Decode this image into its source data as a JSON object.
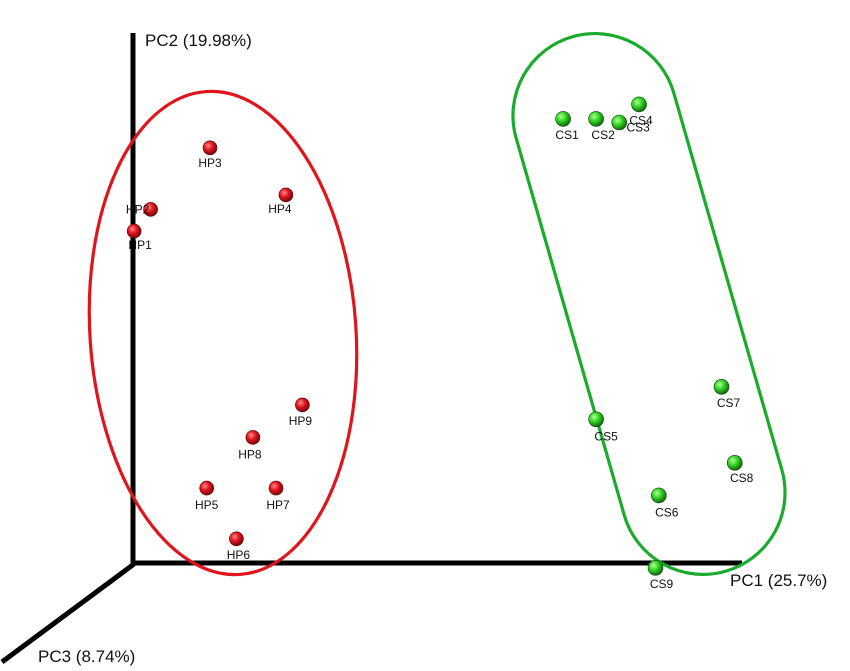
{
  "chart_data": {
    "type": "scatter",
    "title": "",
    "axes": {
      "pc1": {
        "label": "PC1 (25.7%)"
      },
      "pc2": {
        "label": "PC2 (19.98%)"
      },
      "pc3": {
        "label": "PC3 (8.74%)"
      }
    },
    "colors": {
      "HP": "#e0141c",
      "CS": "#1aaa2e",
      "axis": "#000000"
    },
    "grid": false,
    "legend": "none",
    "groups": [
      {
        "id": "HP",
        "color": "#e0141c"
      },
      {
        "id": "CS",
        "color": "#1aaa2e"
      }
    ],
    "points": [
      {
        "label": "HP1",
        "group": "HP",
        "pc1": -0.93,
        "pc2": 0.65
      },
      {
        "label": "HP2",
        "group": "HP",
        "pc1": -0.88,
        "pc2": 0.71
      },
      {
        "label": "HP3",
        "group": "HP",
        "pc1": -0.7,
        "pc2": 0.88
      },
      {
        "label": "HP4",
        "group": "HP",
        "pc1": -0.47,
        "pc2": 0.75
      },
      {
        "label": "HP5",
        "group": "HP",
        "pc1": -0.71,
        "pc2": -0.06
      },
      {
        "label": "HP6",
        "group": "HP",
        "pc1": -0.62,
        "pc2": -0.2
      },
      {
        "label": "HP7",
        "group": "HP",
        "pc1": -0.5,
        "pc2": -0.06
      },
      {
        "label": "HP8",
        "group": "HP",
        "pc1": -0.57,
        "pc2": 0.08
      },
      {
        "label": "HP9",
        "group": "HP",
        "pc1": -0.42,
        "pc2": 0.17
      },
      {
        "label": "CS1",
        "group": "CS",
        "pc1": 0.37,
        "pc2": 0.96
      },
      {
        "label": "CS2",
        "group": "CS",
        "pc1": 0.47,
        "pc2": 0.96
      },
      {
        "label": "CS3",
        "group": "CS",
        "pc1": 0.54,
        "pc2": 0.95
      },
      {
        "label": "CS4",
        "group": "CS",
        "pc1": 0.6,
        "pc2": 1.0
      },
      {
        "label": "CS5",
        "group": "CS",
        "pc1": 0.47,
        "pc2": 0.13
      },
      {
        "label": "CS6",
        "group": "CS",
        "pc1": 0.66,
        "pc2": -0.08
      },
      {
        "label": "CS7",
        "group": "CS",
        "pc1": 0.85,
        "pc2": 0.22
      },
      {
        "label": "CS8",
        "group": "CS",
        "pc1": 0.89,
        "pc2": 0.01
      },
      {
        "label": "CS9",
        "group": "CS",
        "pc1": 0.65,
        "pc2": -0.28
      }
    ]
  }
}
